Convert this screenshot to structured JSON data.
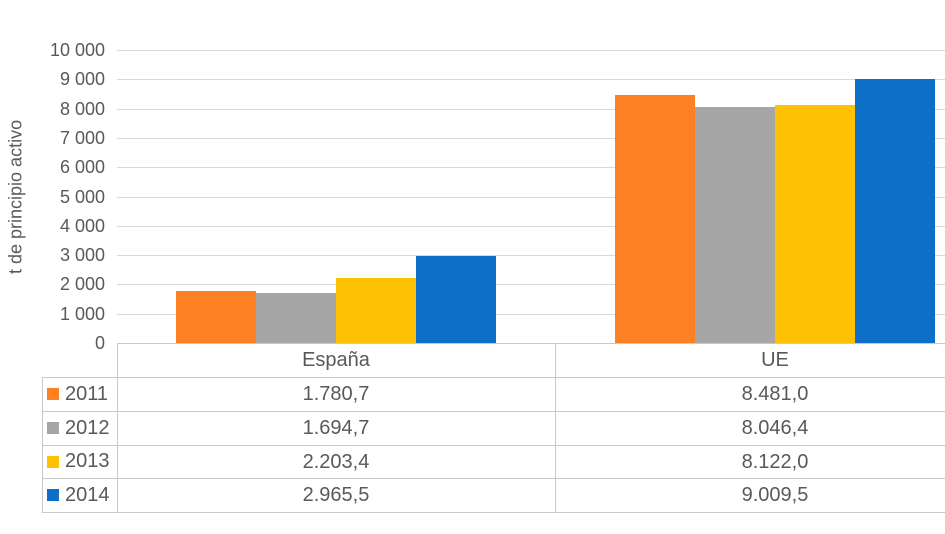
{
  "chart_data": {
    "type": "bar",
    "title": "",
    "xlabel": "",
    "ylabel": "t de principio activo",
    "categories": [
      "España",
      "UE"
    ],
    "series": [
      {
        "name": "2011",
        "color": "#FD8023",
        "values": [
          1780.7,
          8481.0
        ],
        "display": [
          "1.780,7",
          "8.481,0"
        ]
      },
      {
        "name": "2012",
        "color": "#A6A6A6",
        "values": [
          1694.7,
          8046.4
        ],
        "display": [
          "1.694,7",
          "8.046,4"
        ]
      },
      {
        "name": "2013",
        "color": "#FFC103",
        "values": [
          2203.4,
          8122.0
        ],
        "display": [
          "2.203,4",
          "8.122,0"
        ]
      },
      {
        "name": "2014",
        "color": "#0D6FC8",
        "values": [
          2965.5,
          9009.5
        ],
        "display": [
          "2.965,5",
          "9.009,5"
        ]
      }
    ],
    "ylim": [
      0,
      10000
    ],
    "ytick_step": 1000,
    "ytick_labels": [
      "0",
      "1 000",
      "2 000",
      "3 000",
      "4 000",
      "5 000",
      "6 000",
      "7 000",
      "8 000",
      "9 000",
      "10 000"
    ],
    "grid": true,
    "legend_position": "data-table-row-keys-left",
    "data_table": {
      "columns": [
        "España",
        "UE"
      ],
      "row_labels": [
        "2011",
        "2012",
        "2013",
        "2014"
      ],
      "cells": [
        [
          "1.780,7",
          "8.481,0"
        ],
        [
          "1.694,7",
          "8.046,4"
        ],
        [
          "2.203,4",
          "8.122,0"
        ],
        [
          "2.965,5",
          "9.009,5"
        ]
      ]
    }
  },
  "colors": {
    "text": "#595959",
    "gridline": "#D9D9D9",
    "table_border": "#C9C9C9",
    "background": "#FFFFFF"
  }
}
